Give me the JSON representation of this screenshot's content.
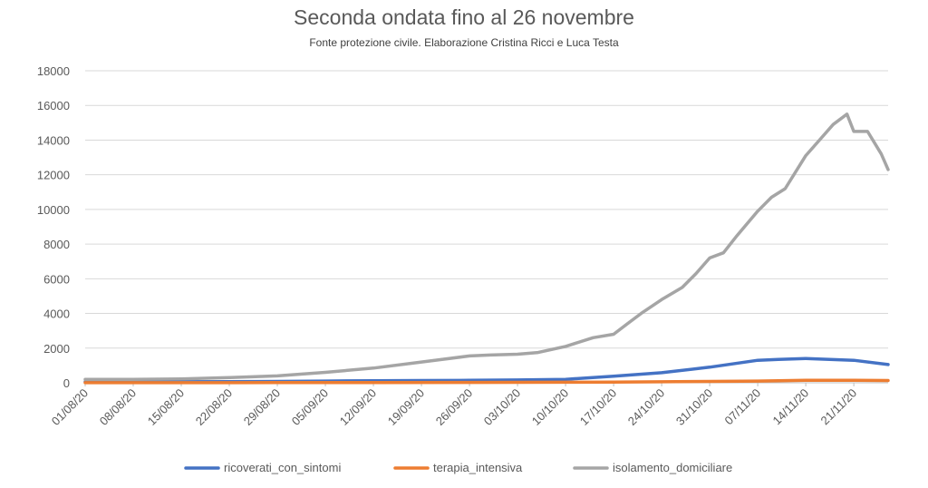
{
  "chart_data": {
    "type": "line",
    "title": "Seconda ondata fino al 26 novembre",
    "subtitle": "Fonte protezione civile. Elaborazione Cristina Ricci e Luca Testa",
    "xlabel": "",
    "ylabel": "",
    "x_start": "01/08/20",
    "x_end": "26/11/20",
    "x_tick_labels": [
      "01/08/20",
      "08/08/20",
      "15/08/20",
      "22/08/20",
      "29/08/20",
      "05/09/20",
      "12/09/20",
      "19/09/20",
      "26/09/20",
      "03/10/20",
      "10/10/20",
      "17/10/20",
      "24/10/20",
      "31/10/20",
      "07/11/20",
      "14/11/20",
      "21/11/20"
    ],
    "y_ticks": [
      0,
      2000,
      4000,
      6000,
      8000,
      10000,
      12000,
      14000,
      16000,
      18000
    ],
    "ylim": [
      0,
      18000
    ],
    "grid": true,
    "legend_position": "bottom",
    "series": [
      {
        "name": "ricoverati_con_sintomi",
        "color": "#4472C4",
        "points": [
          [
            "01/08/20",
            50
          ],
          [
            "08/08/20",
            50
          ],
          [
            "15/08/20",
            60
          ],
          [
            "22/08/20",
            70
          ],
          [
            "29/08/20",
            80
          ],
          [
            "05/09/20",
            100
          ],
          [
            "12/09/20",
            120
          ],
          [
            "19/09/20",
            130
          ],
          [
            "26/09/20",
            140
          ],
          [
            "03/10/20",
            160
          ],
          [
            "10/10/20",
            200
          ],
          [
            "17/10/20",
            380
          ],
          [
            "24/10/20",
            580
          ],
          [
            "31/10/20",
            900
          ],
          [
            "07/11/20",
            1300
          ],
          [
            "10/11/20",
            1350
          ],
          [
            "14/11/20",
            1400
          ],
          [
            "21/11/20",
            1300
          ],
          [
            "26/11/20",
            1050
          ]
        ]
      },
      {
        "name": "terapia_intensiva",
        "color": "#ED7D31",
        "points": [
          [
            "01/08/20",
            5
          ],
          [
            "15/08/20",
            5
          ],
          [
            "29/08/20",
            10
          ],
          [
            "12/09/20",
            15
          ],
          [
            "26/09/20",
            20
          ],
          [
            "10/10/20",
            30
          ],
          [
            "17/10/20",
            40
          ],
          [
            "24/10/20",
            60
          ],
          [
            "31/10/20",
            80
          ],
          [
            "07/11/20",
            100
          ],
          [
            "14/11/20",
            140
          ],
          [
            "21/11/20",
            140
          ],
          [
            "26/11/20",
            130
          ]
        ]
      },
      {
        "name": "isolamento_domiciliare",
        "color": "#A5A5A5",
        "points": [
          [
            "01/08/20",
            200
          ],
          [
            "08/08/20",
            200
          ],
          [
            "15/08/20",
            220
          ],
          [
            "22/08/20",
            300
          ],
          [
            "29/08/20",
            400
          ],
          [
            "05/09/20",
            600
          ],
          [
            "12/09/20",
            850
          ],
          [
            "19/09/20",
            1200
          ],
          [
            "26/09/20",
            1550
          ],
          [
            "29/09/20",
            1600
          ],
          [
            "03/10/20",
            1650
          ],
          [
            "06/10/20",
            1750
          ],
          [
            "10/10/20",
            2100
          ],
          [
            "14/10/20",
            2600
          ],
          [
            "17/10/20",
            2800
          ],
          [
            "19/10/20",
            3400
          ],
          [
            "21/10/20",
            4000
          ],
          [
            "24/10/20",
            4800
          ],
          [
            "27/10/20",
            5500
          ],
          [
            "29/10/20",
            6300
          ],
          [
            "31/10/20",
            7200
          ],
          [
            "02/11/20",
            7500
          ],
          [
            "04/11/20",
            8500
          ],
          [
            "07/11/20",
            9900
          ],
          [
            "09/11/20",
            10700
          ],
          [
            "11/11/20",
            11200
          ],
          [
            "14/11/20",
            13100
          ],
          [
            "16/11/20",
            14000
          ],
          [
            "18/11/20",
            14900
          ],
          [
            "20/11/20",
            15500
          ],
          [
            "21/11/20",
            14500
          ],
          [
            "23/11/20",
            14500
          ],
          [
            "25/11/20",
            13200
          ],
          [
            "26/11/20",
            12300
          ]
        ]
      }
    ]
  }
}
